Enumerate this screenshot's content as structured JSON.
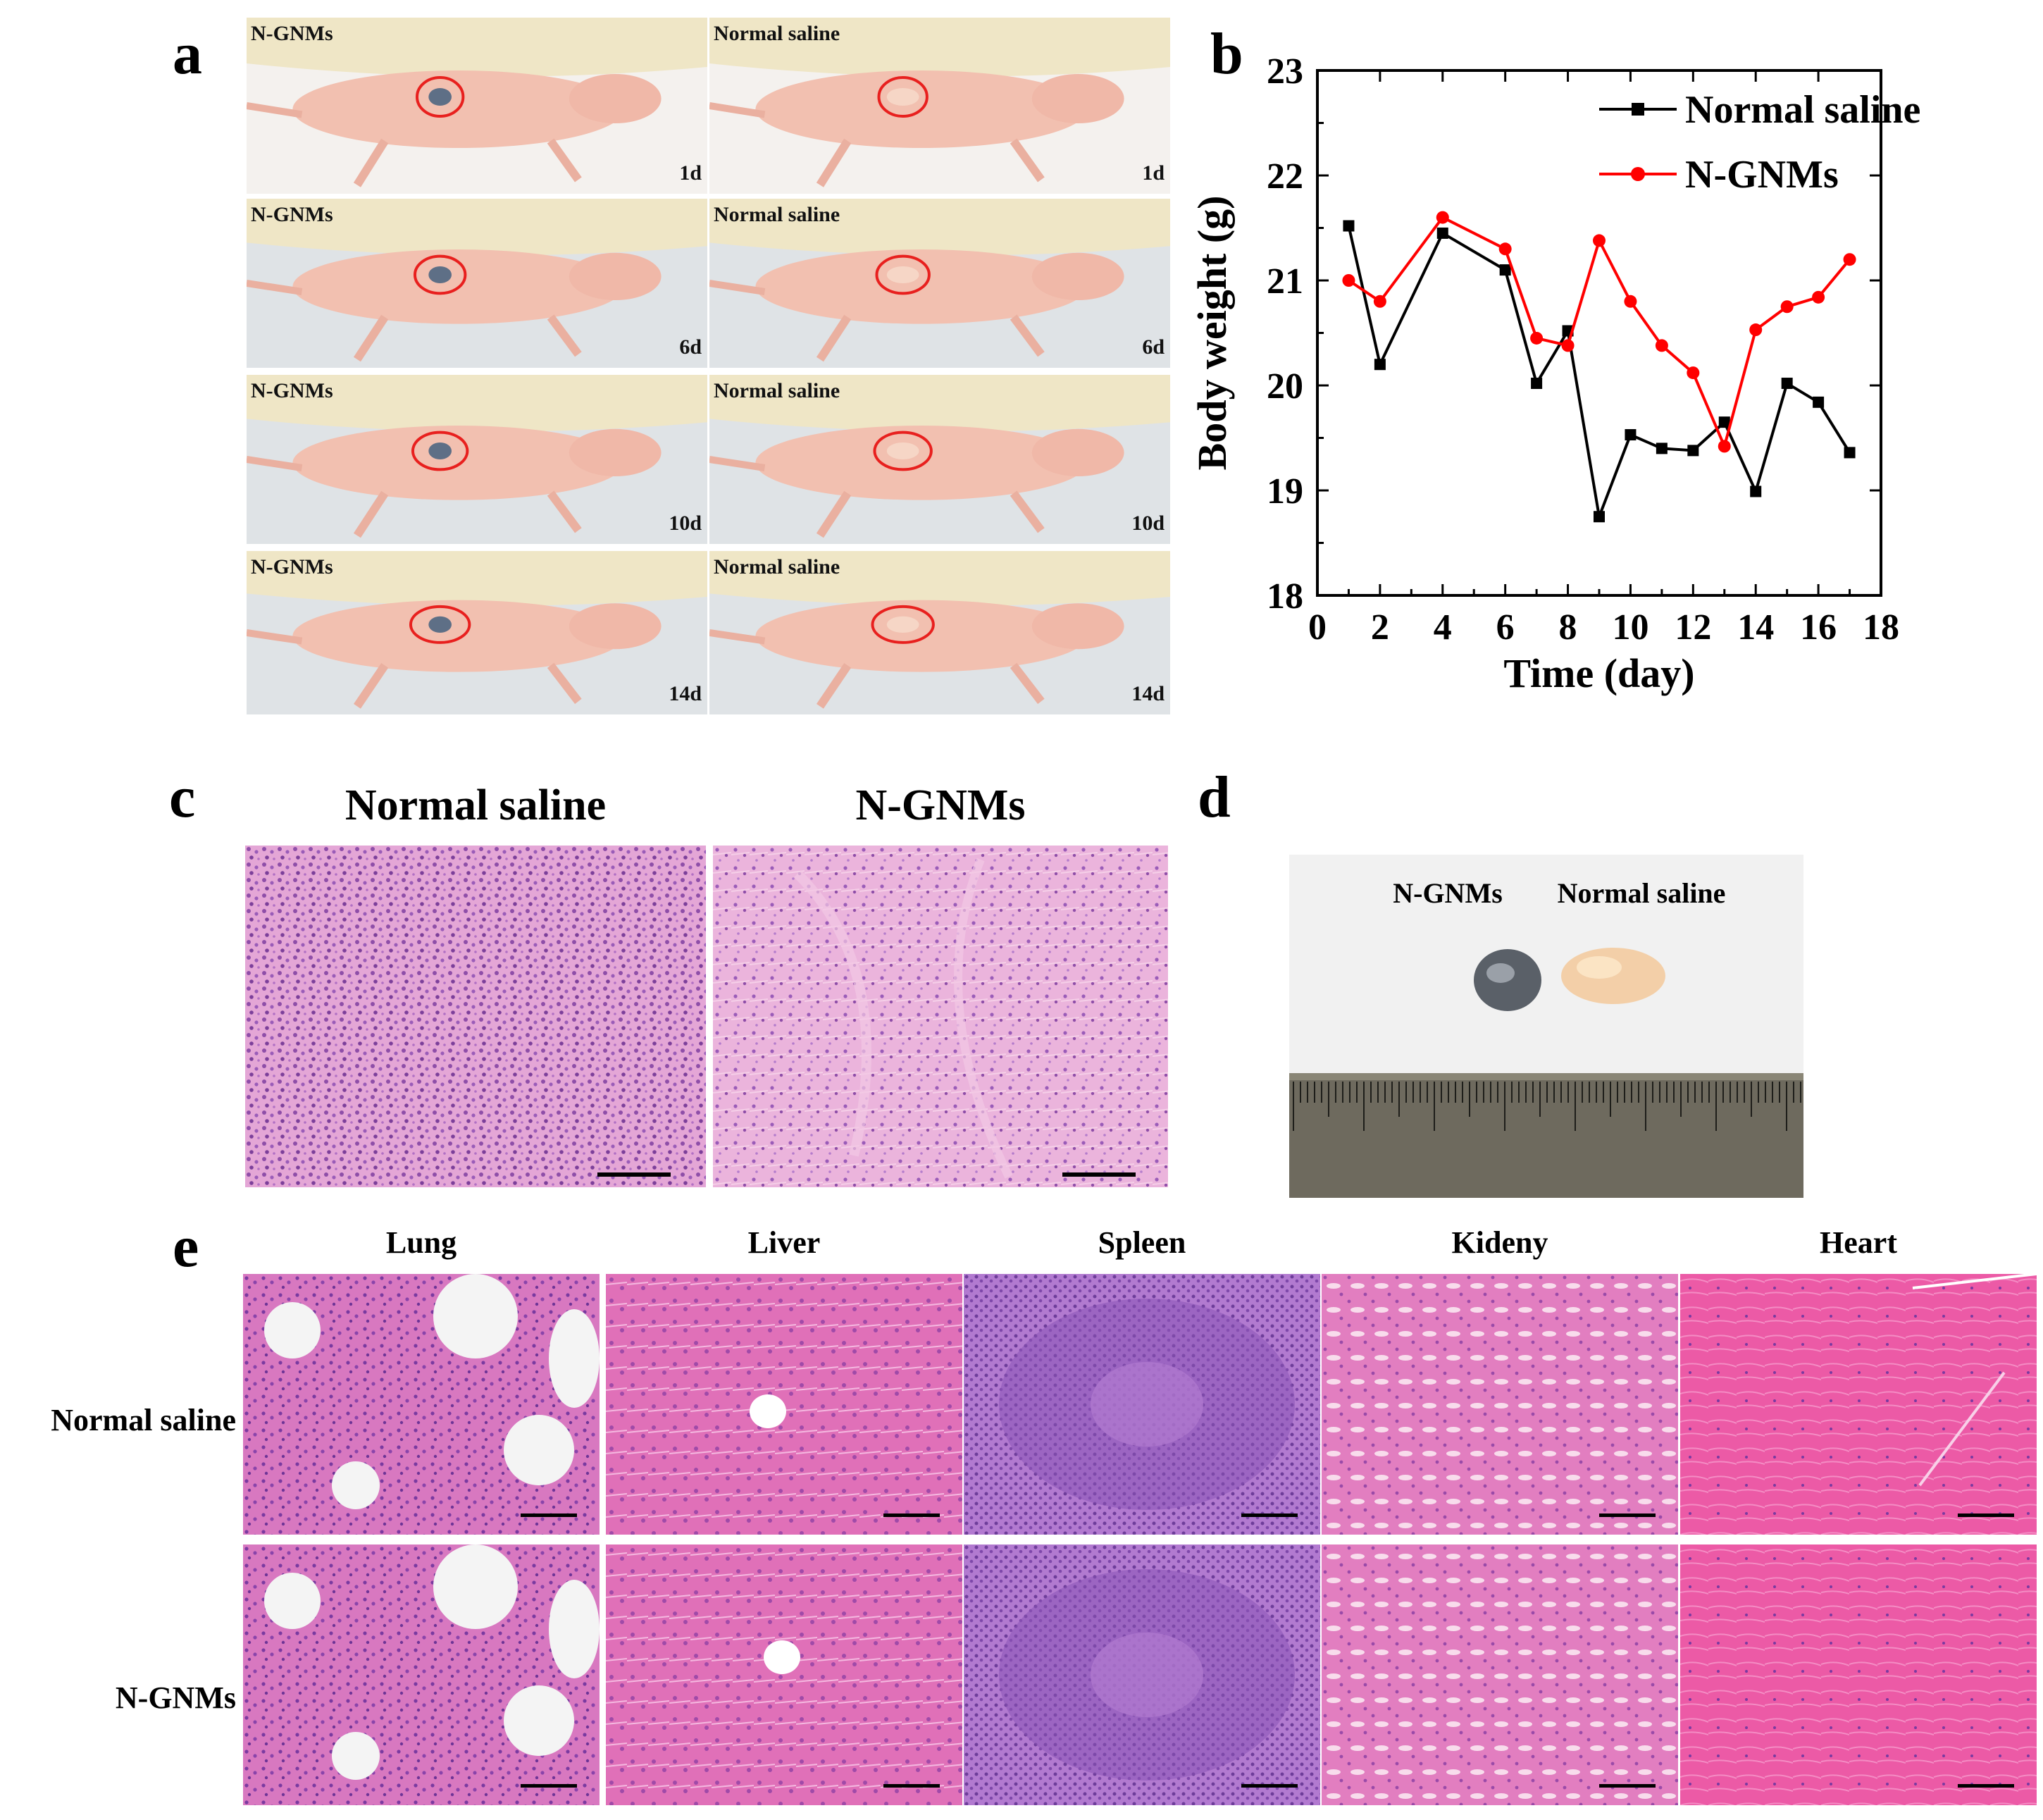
{
  "panels": {
    "a": {
      "letter": "a",
      "photos": [
        {
          "group": "N-GNMs",
          "day": "1d"
        },
        {
          "group": "Normal saline",
          "day": "1d"
        },
        {
          "group": "N-GNMs",
          "day": "6d"
        },
        {
          "group": "Normal saline",
          "day": "6d"
        },
        {
          "group": "N-GNMs",
          "day": "10d"
        },
        {
          "group": "Normal saline",
          "day": "10d"
        },
        {
          "group": "N-GNMs",
          "day": "14d"
        },
        {
          "group": "Normal saline",
          "day": "14d"
        }
      ]
    },
    "b": {
      "letter": "b"
    },
    "c": {
      "letter": "c",
      "titles": [
        "Normal saline",
        "N-GNMs"
      ]
    },
    "d": {
      "letter": "d",
      "labels": [
        "N-GNMs",
        "Normal saline"
      ]
    },
    "e": {
      "letter": "e",
      "organs": [
        "Lung",
        "Liver",
        "Spleen",
        "Kideny",
        "Heart"
      ],
      "rows": [
        "Normal saline",
        "N-GNMs"
      ]
    }
  },
  "colors": {
    "normal_saline": "#000000",
    "n_gnms": "#ff0000",
    "he_pink": "#e68cc0",
    "he_purple": "#9a5cb8",
    "skin": "#f2c0b0"
  },
  "chart_data": {
    "type": "line",
    "xlabel": "Time (day)",
    "ylabel": "Body weight (g)",
    "xlim": [
      0,
      18
    ],
    "ylim": [
      18,
      23
    ],
    "xticks": [
      0,
      2,
      4,
      6,
      8,
      10,
      12,
      14,
      16,
      18
    ],
    "yticks": [
      18,
      19,
      20,
      21,
      22,
      23
    ],
    "legend_position": "top-right",
    "grid": false,
    "series": [
      {
        "name": "Normal saline",
        "color": "#000000",
        "marker": "square",
        "x": [
          1,
          2,
          4,
          6,
          7,
          8,
          9,
          10,
          11,
          12,
          13,
          14,
          15,
          16,
          17
        ],
        "y": [
          21.52,
          20.2,
          21.45,
          21.1,
          20.02,
          20.52,
          18.75,
          19.53,
          19.4,
          19.38,
          19.65,
          18.99,
          20.02,
          19.84,
          19.36
        ]
      },
      {
        "name": "N-GNMs",
        "color": "#ff0000",
        "marker": "circle",
        "x": [
          1,
          2,
          4,
          6,
          7,
          8,
          9,
          10,
          11,
          12,
          13,
          14,
          15,
          16,
          17
        ],
        "y": [
          21.0,
          20.8,
          21.6,
          21.3,
          20.45,
          20.38,
          21.38,
          20.8,
          20.38,
          20.12,
          19.42,
          20.53,
          20.75,
          20.84,
          21.2
        ]
      }
    ]
  }
}
